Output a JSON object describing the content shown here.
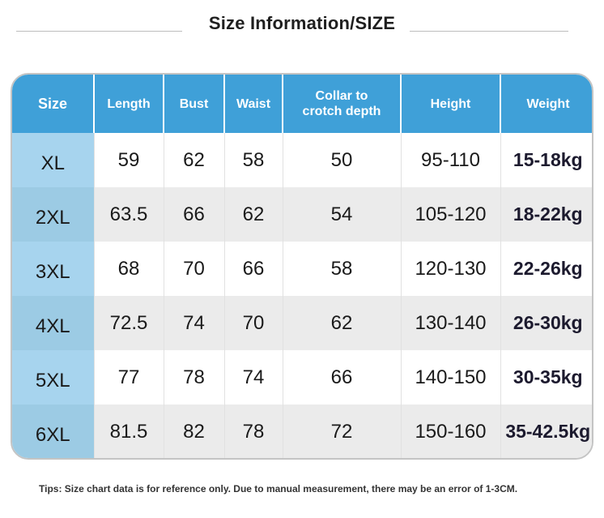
{
  "title": "Size Information/SIZE",
  "table": {
    "headers": [
      "Size",
      "Length",
      "Bust",
      "Waist",
      "Collar to crotch depth",
      "Height",
      "Weight"
    ],
    "rows": [
      [
        "XL",
        "59",
        "62",
        "58",
        "50",
        "95-110",
        "15-18kg"
      ],
      [
        "2XL",
        "63.5",
        "66",
        "62",
        "54",
        "105-120",
        "18-22kg"
      ],
      [
        "3XL",
        "68",
        "70",
        "66",
        "58",
        "120-130",
        "22-26kg"
      ],
      [
        "4XL",
        "72.5",
        "74",
        "70",
        "62",
        "130-140",
        "26-30kg"
      ],
      [
        "5XL",
        "77",
        "78",
        "74",
        "66",
        "140-150",
        "30-35kg"
      ],
      [
        "6XL",
        "81.5",
        "82",
        "78",
        "72",
        "150-160",
        "35-42.5kg"
      ]
    ]
  },
  "colors": {
    "header_bg": "#3fa0d8",
    "size_column_bg": "#a7d4ee",
    "alt_row_bg": "#ebebeb"
  },
  "tips": "Tips: Size chart data is for reference only. Due to manual measurement, there may be an error of 1-3CM."
}
